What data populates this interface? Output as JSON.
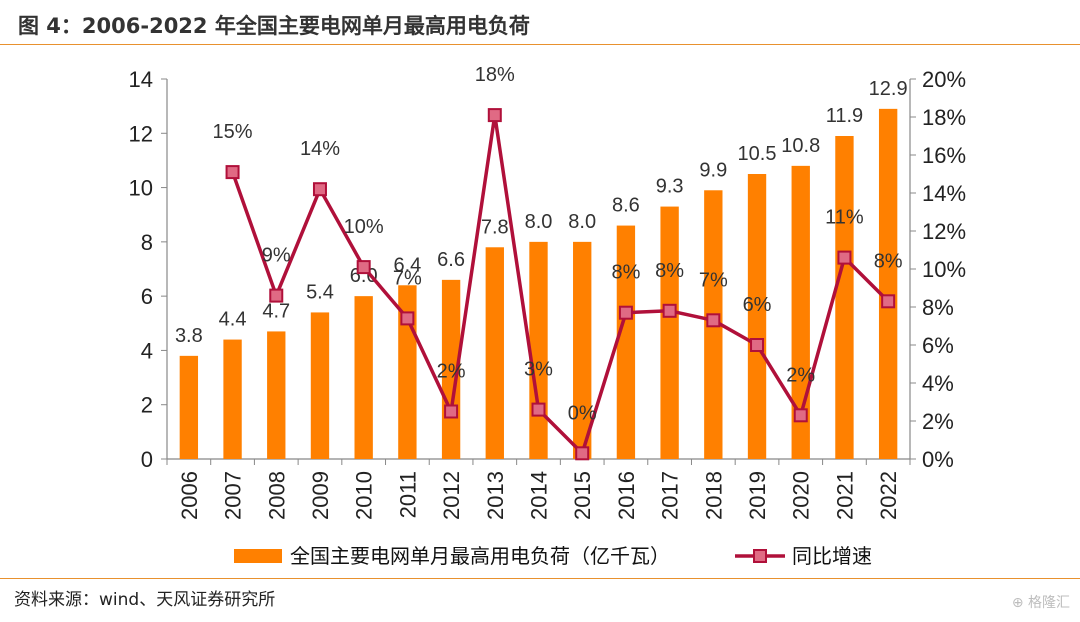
{
  "header": {
    "title": "图 4：2006-2022 年全国主要电网单月最高用电负荷"
  },
  "footer": {
    "source": "资料来源：wind、天风证券研究所",
    "watermark": "⊕ 格隆汇"
  },
  "colors": {
    "bar": "#FF8000",
    "line": "#B0103A",
    "marker_fill": "#E06A84",
    "rule": "#E8912E"
  },
  "chart_data": {
    "type": "bar",
    "categories": [
      "2006",
      "2007",
      "2008",
      "2009",
      "2010",
      "2011",
      "2012",
      "2013",
      "2014",
      "2015",
      "2016",
      "2017",
      "2018",
      "2019",
      "2020",
      "2021",
      "2022"
    ],
    "series": [
      {
        "name": "全国主要电网单月最高用电负荷（亿千瓦）",
        "type": "bar",
        "axis": "left",
        "values": [
          3.8,
          4.4,
          4.7,
          5.4,
          6.0,
          6.4,
          6.6,
          7.8,
          8.0,
          8.0,
          8.6,
          9.3,
          9.9,
          10.5,
          10.8,
          11.9,
          12.9
        ],
        "labels": [
          "3.8",
          "4.4",
          "4.7",
          "5.4",
          "6.0",
          "6.4",
          "6.6",
          "7.8",
          "8.0",
          "8.0",
          "8.6",
          "9.3",
          "9.9",
          "10.5",
          "10.8",
          "11.9",
          "12.9"
        ]
      },
      {
        "name": "同比增速",
        "type": "line",
        "axis": "right",
        "values": [
          null,
          0.151,
          0.086,
          0.142,
          0.101,
          0.074,
          0.025,
          0.181,
          0.026,
          0.003,
          0.077,
          0.078,
          0.073,
          0.06,
          0.023,
          0.106,
          0.083
        ],
        "labels": [
          null,
          "15%",
          "9%",
          "14%",
          "10%",
          "7%",
          "2%",
          "18%",
          "3%",
          "0%",
          "8%",
          "8%",
          "7%",
          "6%",
          "2%",
          "11%",
          "8%"
        ]
      }
    ],
    "y_left": {
      "min": 0,
      "max": 14,
      "ticks": [
        "0",
        "2",
        "4",
        "6",
        "8",
        "10",
        "12",
        "14"
      ]
    },
    "y_right": {
      "min": 0,
      "max": 0.2,
      "ticks": [
        "0%",
        "2%",
        "4%",
        "6%",
        "8%",
        "10%",
        "12%",
        "14%",
        "16%",
        "18%",
        "20%"
      ]
    },
    "grid": false,
    "legend": {
      "position": "bottom",
      "items": [
        "全国主要电网单月最高用电负荷（亿千瓦）",
        "同比增速"
      ]
    }
  }
}
